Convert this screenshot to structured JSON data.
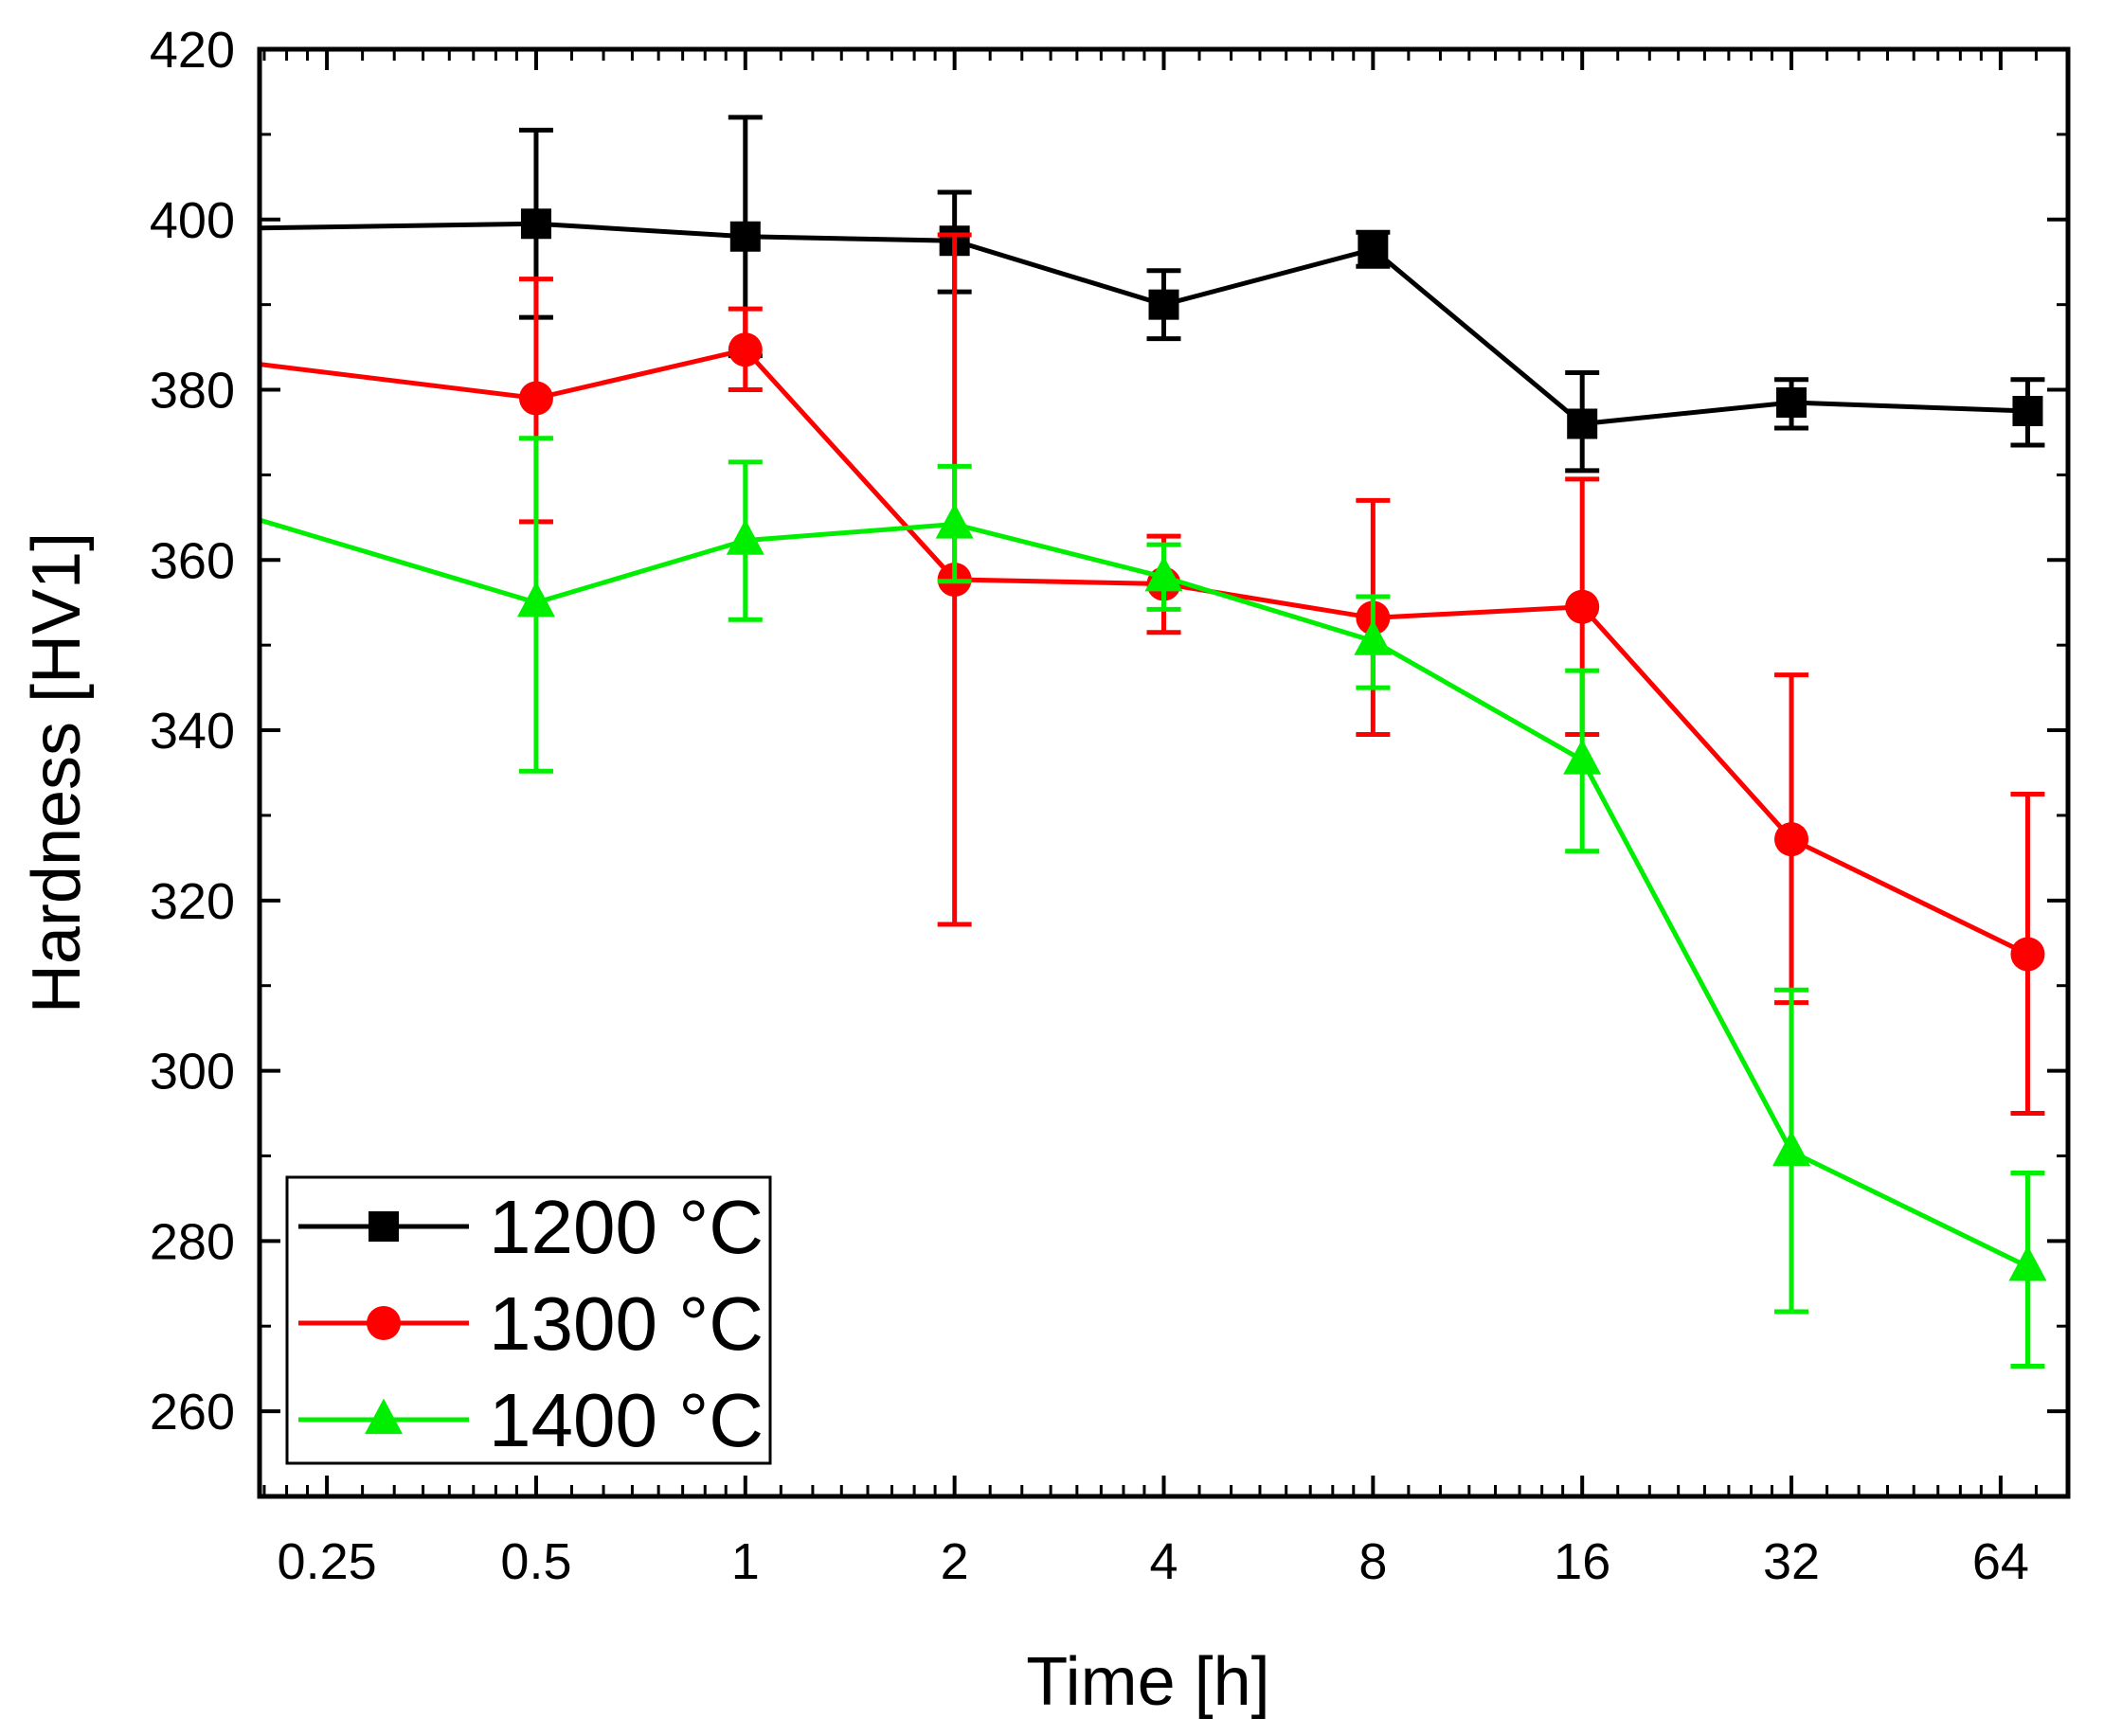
{
  "chart_data": {
    "type": "line",
    "xlabel": "Time [h]",
    "ylabel": "Hardness [HV1]",
    "x_scale": "log2",
    "xlim": [
      0.2,
      80
    ],
    "ylim": [
      250,
      420
    ],
    "x_ticks": [
      0.25,
      0.5,
      1,
      2,
      4,
      8,
      16,
      32,
      64
    ],
    "x_tick_labels": [
      "0.25",
      "0.5",
      "1",
      "2",
      "4",
      "8",
      "16",
      "32",
      "64"
    ],
    "y_ticks": [
      260,
      280,
      300,
      320,
      340,
      360,
      380,
      400,
      420
    ],
    "y_tick_labels": [
      "260",
      "280",
      "300",
      "320",
      "340",
      "360",
      "380",
      "400",
      "420"
    ],
    "grid": false,
    "legend_position": "bottom-left",
    "series": [
      {
        "name": "1200 °C",
        "color": "#000000",
        "marker": "square",
        "line_start": 0.2,
        "x": [
          0.5,
          1,
          2,
          4,
          8,
          16,
          32,
          70
        ],
        "y": [
          399.5,
          398,
          397.5,
          390,
          396.5,
          376,
          378.5,
          377.5
        ],
        "err_low": [
          388.5,
          384,
          391.5,
          386,
          394.5,
          370.5,
          375.5,
          373.5
        ],
        "err_high": [
          410.5,
          412,
          403.2,
          394,
          398.5,
          382,
          381.2,
          381.2
        ],
        "start_y": 399
      },
      {
        "name": "1300 °C",
        "color": "#ff0000",
        "marker": "circle",
        "x": [
          0.5,
          1,
          2,
          4,
          8,
          16,
          32,
          70
        ],
        "y": [
          379,
          384.7,
          357.7,
          357.2,
          353.2,
          354.5,
          327.2,
          313.7
        ],
        "err_low": [
          364.5,
          380,
          317.2,
          351.5,
          339.5,
          339.5,
          308,
          295
        ],
        "err_high": [
          393,
          389.5,
          398.2,
          362.8,
          367,
          369.5,
          346.5,
          332.5
        ],
        "start_y": 383
      },
      {
        "name": "1400 °C",
        "color": "#00ee00",
        "marker": "triangle",
        "x": [
          0.5,
          1,
          2,
          4,
          8,
          16,
          32,
          70
        ],
        "y": [
          355,
          362.3,
          364.2,
          358,
          350.5,
          336.5,
          290.5,
          277
        ],
        "err_low": [
          335.2,
          353,
          357.5,
          354.2,
          345,
          325.8,
          271.7,
          265.3
        ],
        "err_high": [
          374.3,
          371.5,
          371,
          361.8,
          355.7,
          347,
          309.5,
          288
        ],
        "start_y": 364.7
      }
    ]
  }
}
